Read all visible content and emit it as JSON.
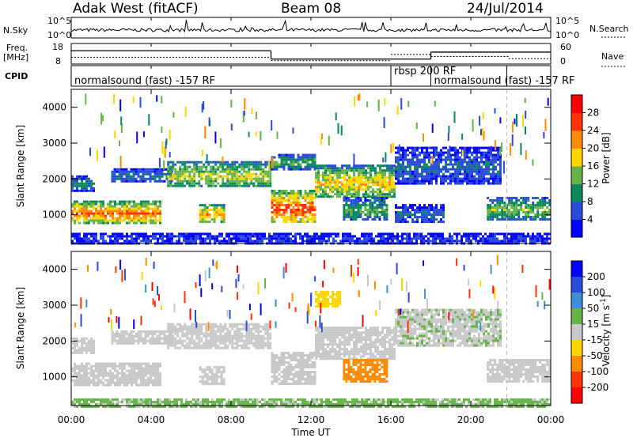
{
  "header": {
    "station": "Adak West (fitACF)",
    "beam": "Beam 08",
    "date": "24/Jul/2014"
  },
  "top_panels": {
    "nsky_label": "N.Sky",
    "nsky_top": "10^5",
    "nsky_bottom": "10^0",
    "nsearch_top": "10^5",
    "nsearch_bottom": "10^0",
    "nsearch_label": "N.Search",
    "freq_label_1": "Freq.",
    "freq_label_2": "[MHz]",
    "freq_top": "18",
    "freq_bottom": "8",
    "nave_top": "60",
    "nave_bottom": "0",
    "nave_label": "Nave",
    "cpid_label": "CPID",
    "cpid_segments": [
      {
        "label": "normalsound (fast) -157 RF",
        "start_hour": 0,
        "end_hour": 16,
        "row": 1
      },
      {
        "label": "rbsp 200 RF",
        "start_hour": 16,
        "end_hour": 18,
        "row": 0
      },
      {
        "label": "normalsound (fast) -157 RF",
        "start_hour": 18,
        "end_hour": 24,
        "row": 1
      }
    ],
    "freq_series": [
      {
        "start_hour": 0.0,
        "end_hour": 10.0,
        "mhz": 14.5
      },
      {
        "start_hour": 10.0,
        "end_hour": 18.0,
        "mhz": 10.4
      },
      {
        "start_hour": 18.0,
        "end_hour": 24.0,
        "mhz": 13.8
      }
    ],
    "nave_series": [
      {
        "start_hour": 0.0,
        "end_hour": 10.0,
        "value": 20
      },
      {
        "start_hour": 10.0,
        "end_hour": 16.0,
        "value": 10
      },
      {
        "start_hour": 16.0,
        "end_hour": 18.0,
        "value": 28
      },
      {
        "start_hour": 18.0,
        "end_hour": 21.9,
        "value": 22
      },
      {
        "start_hour": 21.9,
        "end_hour": 24.0,
        "value": 16
      }
    ]
  },
  "chart_data": [
    {
      "type": "heatmap",
      "xlabel": "",
      "ylabel": "Slant Range [km]",
      "x_range_hours": [
        0,
        24
      ],
      "ylim": [
        200,
        4500
      ],
      "yticks": [
        1000,
        2000,
        3000,
        4000
      ],
      "colorbar": {
        "label": "Power [dB]",
        "ticks": [
          "28",
          "24",
          "20",
          "16",
          "12",
          "8",
          "4"
        ],
        "colors": [
          "#0000ff",
          "#2a4bd7",
          "#0a8a5a",
          "#67b34b",
          "#ffd700",
          "#ff8c00",
          "#ff3300",
          "#ff0000"
        ]
      },
      "bands": [
        {
          "start_hour": 0.0,
          "end_hour": 4.4,
          "range_km": [
            800,
            1400
          ],
          "power_db": 22
        },
        {
          "start_hour": 0.0,
          "end_hour": 1.1,
          "range_km": [
            1700,
            2100
          ],
          "power_db": 10
        },
        {
          "start_hour": 2.0,
          "end_hour": 5.0,
          "range_km": [
            1950,
            2300
          ],
          "power_db": 9
        },
        {
          "start_hour": 4.8,
          "end_hour": 10.0,
          "range_km": [
            1800,
            2500
          ],
          "power_db": 16
        },
        {
          "start_hour": 6.4,
          "end_hour": 7.6,
          "range_km": [
            800,
            1300
          ],
          "power_db": 20
        },
        {
          "start_hour": 10.0,
          "end_hour": 12.2,
          "range_km": [
            800,
            1700
          ],
          "power_db": 24
        },
        {
          "start_hour": 10.0,
          "end_hour": 12.2,
          "range_km": [
            2300,
            2700
          ],
          "power_db": 12
        },
        {
          "start_hour": 12.2,
          "end_hour": 16.2,
          "range_km": [
            1500,
            2400
          ],
          "power_db": 18
        },
        {
          "start_hour": 13.6,
          "end_hour": 15.8,
          "range_km": [
            900,
            1500
          ],
          "power_db": 12
        },
        {
          "start_hour": 16.2,
          "end_hour": 18.6,
          "range_km": [
            800,
            1300
          ],
          "power_db": 8
        },
        {
          "start_hour": 16.2,
          "end_hour": 21.5,
          "range_km": [
            1900,
            2900
          ],
          "power_db": 8
        },
        {
          "start_hour": 20.8,
          "end_hour": 24.0,
          "range_km": [
            900,
            1500
          ],
          "power_db": 14
        },
        {
          "start_hour": 0.0,
          "end_hour": 24.0,
          "range_km": [
            200,
            500
          ],
          "power_db": 6
        }
      ]
    },
    {
      "type": "heatmap",
      "xlabel": "Time UT",
      "ylabel": "Slant Range [km]",
      "x_range_hours": [
        0,
        24
      ],
      "ylim": [
        200,
        4500
      ],
      "yticks": [
        1000,
        2000,
        3000,
        4000
      ],
      "xticks": [
        "00:00",
        "04:00",
        "08:00",
        "12:00",
        "16:00",
        "20:00",
        "00:00"
      ],
      "colorbar": {
        "label": "Velocity [m s^-1]",
        "ticks": [
          "200",
          "100",
          "50",
          "15",
          "-15",
          "-50",
          "-100",
          "-200"
        ],
        "colors": [
          "#0000ff",
          "#2a4bd7",
          "#3e8fd7",
          "#67b34b",
          "#c8c8c8",
          "#ffd700",
          "#ff8c00",
          "#ff3300",
          "#ff0000"
        ]
      },
      "bands": [
        {
          "start_hour": 0.0,
          "end_hour": 4.4,
          "range_km": [
            800,
            1400
          ],
          "velocity": 0
        },
        {
          "start_hour": 0.0,
          "end_hour": 1.1,
          "range_km": [
            1700,
            2100
          ],
          "velocity": 0
        },
        {
          "start_hour": 2.0,
          "end_hour": 5.0,
          "range_km": [
            1950,
            2300
          ],
          "velocity": 0
        },
        {
          "start_hour": 4.8,
          "end_hour": 10.0,
          "range_km": [
            1800,
            2500
          ],
          "velocity": 0
        },
        {
          "start_hour": 6.4,
          "end_hour": 7.6,
          "range_km": [
            800,
            1300
          ],
          "velocity": 0
        },
        {
          "start_hour": 10.0,
          "end_hour": 12.2,
          "range_km": [
            800,
            1700
          ],
          "velocity": 0
        },
        {
          "start_hour": 12.2,
          "end_hour": 16.2,
          "range_km": [
            1500,
            2400
          ],
          "velocity": 0
        },
        {
          "start_hour": 13.6,
          "end_hour": 15.8,
          "range_km": [
            900,
            1500
          ],
          "velocity": -60
        },
        {
          "start_hour": 12.2,
          "end_hour": 13.4,
          "range_km": [
            3000,
            3400
          ],
          "velocity": -40
        },
        {
          "start_hour": 16.2,
          "end_hour": 21.5,
          "range_km": [
            1900,
            2900
          ],
          "velocity": 10
        },
        {
          "start_hour": 20.8,
          "end_hour": 24.0,
          "range_km": [
            900,
            1500
          ],
          "velocity": 0
        },
        {
          "start_hour": 0.0,
          "end_hour": 24.0,
          "range_km": [
            200,
            400
          ],
          "velocity": 20
        }
      ]
    }
  ],
  "colors": {
    "axis": "#000000",
    "grid_dashed": "#bbbbbb"
  }
}
